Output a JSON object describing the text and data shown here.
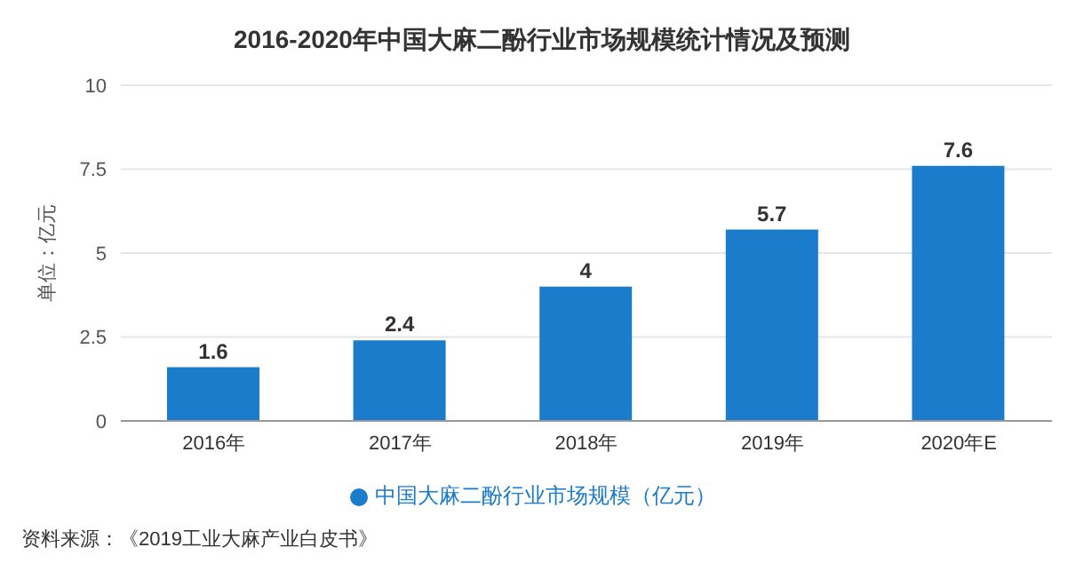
{
  "chart_data": {
    "type": "bar",
    "title": "2016-2020年中国大麻二酚行业市场规模统计情况及预测",
    "ylabel": "单位：亿元",
    "categories": [
      "2016年",
      "2017年",
      "2018年",
      "2019年",
      "2020年E"
    ],
    "series": [
      {
        "name": "中国大麻二酚行业市场规模（亿元）",
        "color": "#1b7ccc",
        "values": [
          1.6,
          2.4,
          4,
          5.7,
          7.6
        ]
      }
    ],
    "ylim": [
      0,
      10
    ],
    "yticks": [
      0,
      2.5,
      5,
      7.5,
      10
    ],
    "grid": "y",
    "legend": "bottom",
    "data_labels": true,
    "annotations": [
      "资料来源：《2019工业大麻产业白皮书》"
    ]
  }
}
